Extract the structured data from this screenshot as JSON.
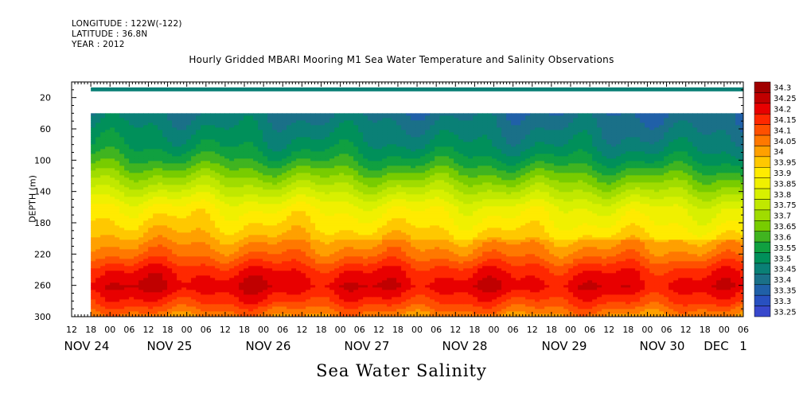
{
  "header": {
    "longitude": "LONGITUDE : 122W(-122)",
    "latitude": "LATITUDE : 36.8N",
    "year": "YEAR : 2012"
  },
  "chart_data": {
    "type": "heatmap",
    "title": "Hourly Gridded MBARI Mooring M1 Sea Water Temperature and Salinity Observations",
    "main_title": "Sea Water Salinity",
    "ylabel": "DEPTH (m)",
    "ylim": [
      0,
      300
    ],
    "y_inverted": true,
    "y_ticks": [
      "20",
      "60",
      "100",
      "140",
      "180",
      "220",
      "260",
      "300"
    ],
    "x_hour_ticks": [
      "12",
      "18",
      "00",
      "06",
      "12",
      "18",
      "00",
      "06",
      "12",
      "18",
      "00",
      "06",
      "12",
      "18",
      "00",
      "06",
      "12",
      "18",
      "00",
      "06",
      "12",
      "18",
      "00",
      "06",
      "12",
      "18",
      "00",
      "06",
      "12",
      "18",
      "00",
      "06",
      "12",
      "18",
      "00",
      "06"
    ],
    "x_day_labels": [
      "NOV 24",
      "NOV 25",
      "NOV 26",
      "NOV 27",
      "NOV 28",
      "NOV 29",
      "NOV 30",
      "DEC",
      "1"
    ],
    "x_range_hours": [
      12,
      222
    ],
    "data_start_hour": 18,
    "legend_levels": [
      "34.3",
      "34.25",
      "34.2",
      "34.15",
      "34.1",
      "34.05",
      "34",
      "33.95",
      "33.9",
      "33.85",
      "33.8",
      "33.75",
      "33.7",
      "33.65",
      "33.6",
      "33.55",
      "33.5",
      "33.45",
      "33.4",
      "33.35",
      "33.3",
      "33.25"
    ],
    "legend_colors": [
      "#a00000",
      "#c00000",
      "#e80000",
      "#ff2800",
      "#ff5000",
      "#ff7800",
      "#ffa000",
      "#ffc800",
      "#ffeb00",
      "#f0f000",
      "#d8f000",
      "#c0e800",
      "#a0dc00",
      "#78cc00",
      "#40b420",
      "#10a040",
      "#00905a",
      "#0a8076",
      "#1a7088",
      "#2060a8",
      "#2850c0",
      "#3848cc"
    ],
    "legend_position": "right",
    "depth_profile": [
      {
        "depth": 10,
        "value": 33.45
      },
      {
        "depth": 40,
        "value": 33.47
      },
      {
        "depth": 80,
        "value": 33.55
      },
      {
        "depth": 100,
        "value": 33.62
      },
      {
        "depth": 120,
        "value": 33.72
      },
      {
        "depth": 140,
        "value": 33.82
      },
      {
        "depth": 160,
        "value": 33.92
      },
      {
        "depth": 180,
        "value": 33.97
      },
      {
        "depth": 200,
        "value": 34.03
      },
      {
        "depth": 220,
        "value": 34.1
      },
      {
        "depth": 240,
        "value": 34.2
      },
      {
        "depth": 260,
        "value": 34.25
      },
      {
        "depth": 280,
        "value": 34.17
      },
      {
        "depth": 300,
        "value": 34.05
      }
    ],
    "shallow_band_depth": [
      7,
      12
    ],
    "data_gap_depth": [
      12,
      40
    ]
  }
}
